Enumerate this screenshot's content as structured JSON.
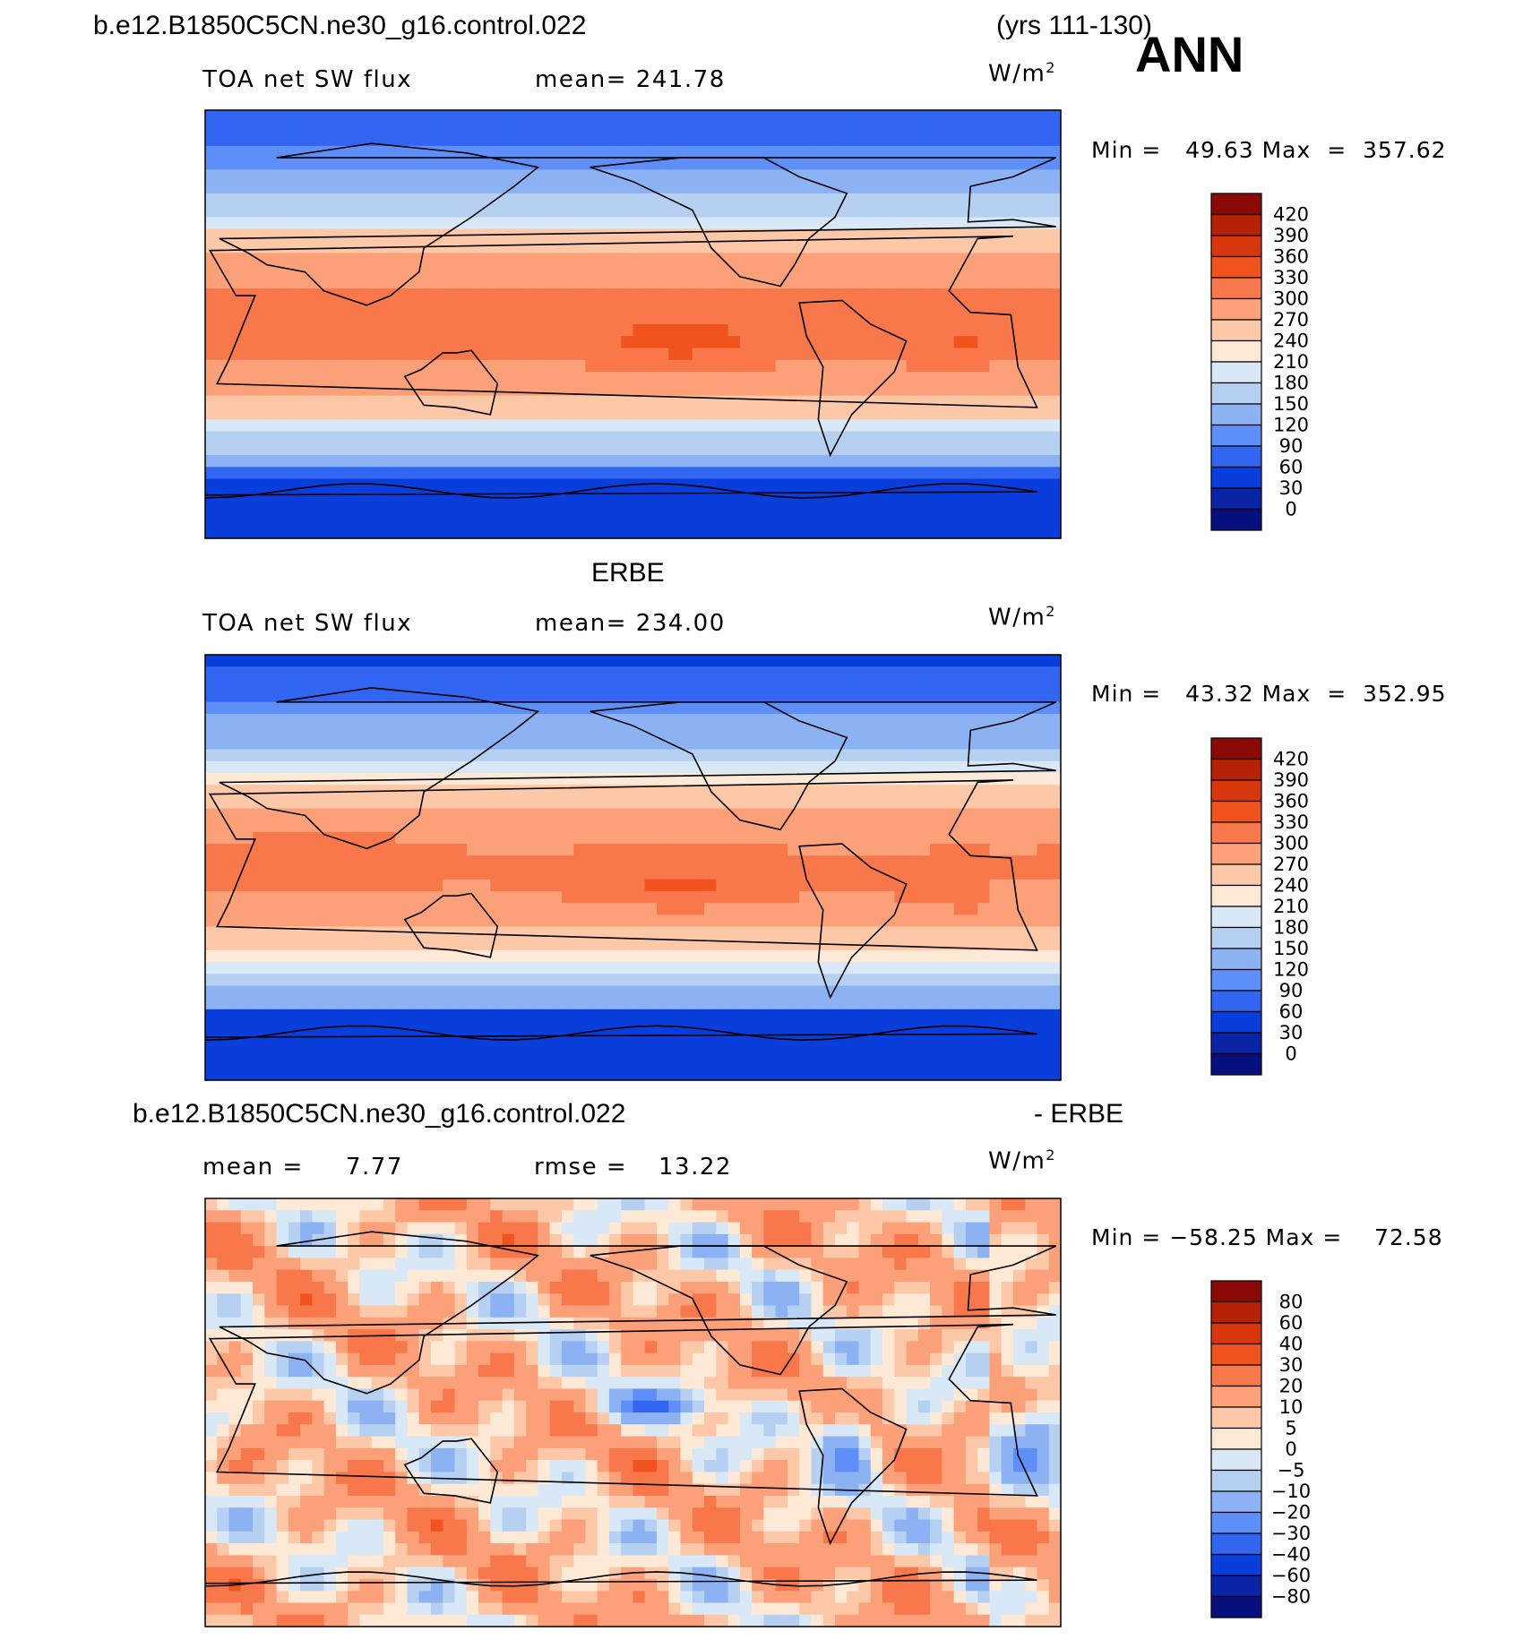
{
  "header": {
    "case_name": "b.e12.B1850C5CN.ne30_g16.control.022",
    "years": "(yrs 111-130)",
    "season": "ANN"
  },
  "chart_data": [
    {
      "type": "heatmap",
      "title": "b.e12.B1850C5CN.ne30_g16.control.022",
      "variable": "TOA net SW flux",
      "mean_text": "mean= 241.78",
      "mean": 241.78,
      "units": "W/m",
      "units_sup": "2",
      "min_max_text": "Min =   49.63 Max  =  357.62",
      "min": 49.63,
      "max": 357.62,
      "colorbar_labels": [
        "420",
        "390",
        "360",
        "330",
        "300",
        "270",
        "240",
        "210",
        "180",
        "150",
        "120",
        "90",
        "60",
        "30",
        "0"
      ],
      "colorbar_colors": [
        "#8b0a05",
        "#b52208",
        "#d8360c",
        "#f0541c",
        "#f8774b",
        "#fba078",
        "#fdc8a8",
        "#fde9d6",
        "#d8e8f6",
        "#b6d0f2",
        "#8cb2f4",
        "#5e8ff8",
        "#3165f2",
        "#0a3edc",
        "#0a24a8",
        "#050f7e"
      ],
      "ylim": [
        0,
        420
      ],
      "palette": "model"
    },
    {
      "type": "heatmap",
      "title": "ERBE",
      "variable": "TOA net SW flux",
      "mean_text": "mean= 234.00",
      "mean": 234.0,
      "units": "W/m",
      "units_sup": "2",
      "min_max_text": "Min =   43.32 Max  =  352.95",
      "min": 43.32,
      "max": 352.95,
      "colorbar_labels": [
        "420",
        "390",
        "360",
        "330",
        "300",
        "270",
        "240",
        "210",
        "180",
        "150",
        "120",
        "90",
        "60",
        "30",
        "0"
      ],
      "colorbar_colors": [
        "#8b0a05",
        "#b52208",
        "#d8360c",
        "#f0541c",
        "#f8774b",
        "#fba078",
        "#fdc8a8",
        "#fde9d6",
        "#d8e8f6",
        "#b6d0f2",
        "#8cb2f4",
        "#5e8ff8",
        "#3165f2",
        "#0a3edc",
        "#0a24a8",
        "#050f7e"
      ],
      "ylim": [
        0,
        420
      ],
      "palette": "obs"
    },
    {
      "type": "heatmap",
      "title": "b.e12.B1850C5CN.ne30_g16.control.022",
      "title_right": "- ERBE",
      "mean_label": "mean =",
      "mean_value": "7.77",
      "rmse_label": "rmse =",
      "rmse_value": "13.22",
      "units": "W/m",
      "units_sup": "2",
      "min_max_text": "Min = −58.25 Max =    72.58",
      "min": -58.25,
      "max": 72.58,
      "colorbar_labels": [
        "80",
        "60",
        "40",
        "30",
        "20",
        "10",
        "5",
        "0",
        "−5",
        "−10",
        "−20",
        "−30",
        "−40",
        "−60",
        "−80"
      ],
      "colorbar_colors": [
        "#8b0a05",
        "#b52208",
        "#d8360c",
        "#f0541c",
        "#f8774b",
        "#fba078",
        "#fdc8a8",
        "#fde9d6",
        "#d8e8f6",
        "#b6d0f2",
        "#8cb2f4",
        "#5e8ff8",
        "#3165f2",
        "#0a3edc",
        "#0a24a8",
        "#050f7e"
      ],
      "ylim": [
        -80,
        80
      ],
      "palette": "diff"
    }
  ]
}
